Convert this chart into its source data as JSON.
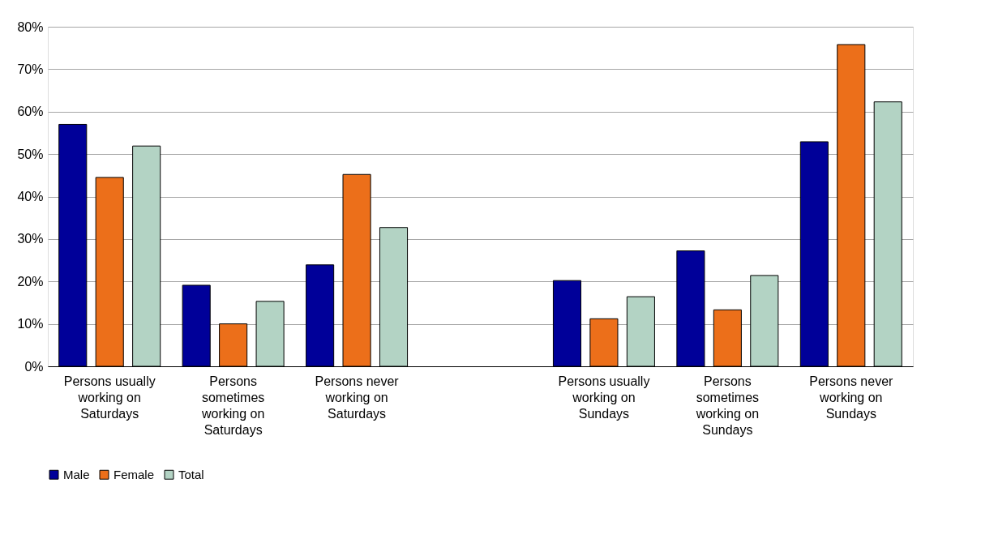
{
  "chart_data": {
    "type": "bar",
    "categories": [
      "Persons usually working on Saturdays",
      "Persons sometimes working on Saturdays",
      "Persons never working on Saturdays",
      null,
      "Persons usually working on Sundays",
      "Persons sometimes working on Sundays",
      "Persons never working on Sundays"
    ],
    "series": [
      {
        "name": "Male",
        "color": "#000099",
        "values": [
          57.0,
          19.1,
          23.9,
          null,
          20.2,
          27.2,
          52.9
        ]
      },
      {
        "name": "Female",
        "color": "#ec6f1a",
        "values": [
          44.5,
          10.0,
          45.2,
          null,
          11.2,
          13.3,
          75.8
        ]
      },
      {
        "name": "Total",
        "color": "#b3d3c4",
        "values": [
          51.9,
          15.3,
          32.7,
          null,
          16.4,
          21.4,
          62.3
        ]
      }
    ],
    "ylim": [
      0,
      80
    ],
    "yticks": [
      {
        "value": 0,
        "label": "0%"
      },
      {
        "value": 10,
        "label": "10%"
      },
      {
        "value": 20,
        "label": "20%"
      },
      {
        "value": 30,
        "label": "30%"
      },
      {
        "value": 40,
        "label": "40%"
      },
      {
        "value": 50,
        "label": "50%"
      },
      {
        "value": 60,
        "label": "60%"
      },
      {
        "value": 70,
        "label": "70%"
      },
      {
        "value": 80,
        "label": "80%"
      }
    ],
    "grid": "y",
    "legend": "bottom"
  }
}
